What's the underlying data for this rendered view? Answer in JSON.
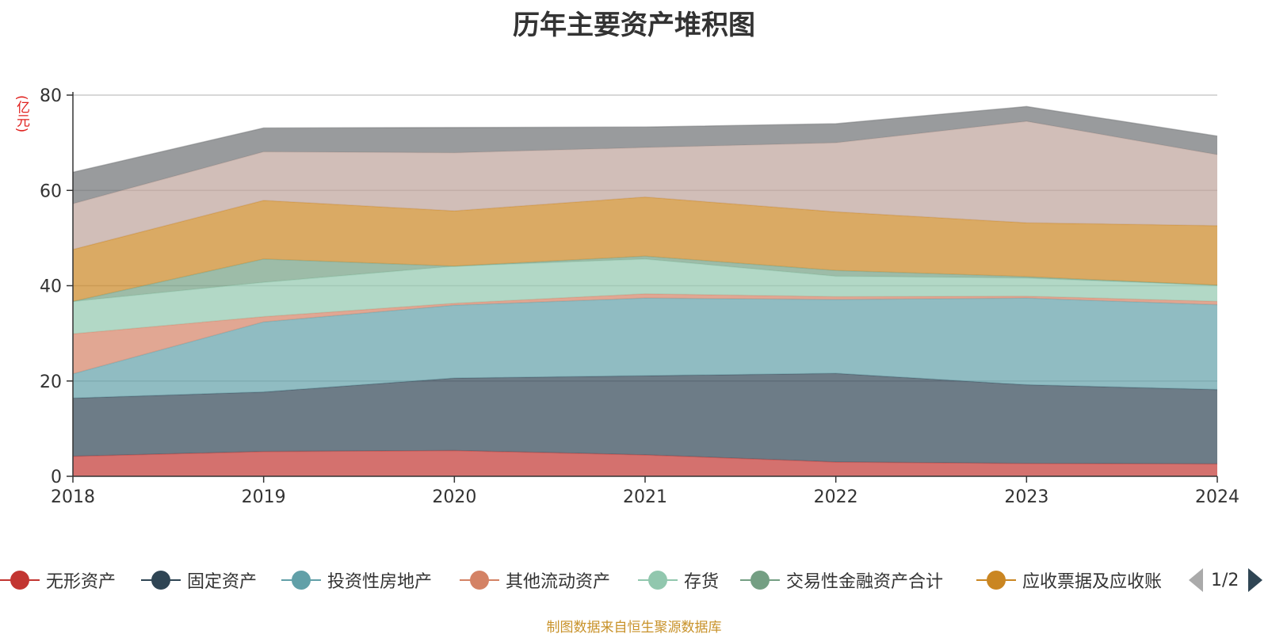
{
  "chart_data": {
    "type": "area",
    "stacked": true,
    "title": "历年主要资产堆积图",
    "ylabel": "(亿元)",
    "xlabel": "",
    "x": [
      "2018",
      "2019",
      "2020",
      "2021",
      "2022",
      "2023",
      "2024"
    ],
    "ylim": [
      0,
      80
    ],
    "yticks": [
      0,
      20,
      40,
      60,
      80
    ],
    "grid": true,
    "legend_position": "bottom",
    "series": [
      {
        "name": "无形资产",
        "color": "#c23531",
        "values": [
          4.2,
          5.2,
          5.4,
          4.5,
          3.0,
          2.7,
          2.6
        ]
      },
      {
        "name": "固定资产",
        "color": "#2f4554",
        "values": [
          12.2,
          12.5,
          15.2,
          16.6,
          18.6,
          16.5,
          15.6
        ]
      },
      {
        "name": "投资性房地产",
        "color": "#61a0a8",
        "values": [
          5.1,
          14.7,
          15.3,
          16.3,
          15.5,
          18.2,
          17.8
        ]
      },
      {
        "name": "其他流动资产",
        "color": "#d48265",
        "values": [
          8.4,
          1.1,
          0.4,
          0.9,
          0.6,
          0.4,
          0.7
        ]
      },
      {
        "name": "存货",
        "color": "#91c7ae",
        "values": [
          6.8,
          7.2,
          7.8,
          7.3,
          4.3,
          3.8,
          3.4
        ]
      },
      {
        "name": "交易性金融资产合计",
        "color": "#749f83",
        "values": [
          0.0,
          4.9,
          0.0,
          0.6,
          1.2,
          0.3,
          0.0
        ]
      },
      {
        "name": "应收票据及应收账",
        "color": "#ca8622",
        "values": [
          10.9,
          12.3,
          11.6,
          12.4,
          12.3,
          11.3,
          12.5
        ]
      },
      {
        "name": "",
        "color": "#bda29a",
        "values": [
          9.6,
          10.2,
          12.2,
          10.4,
          14.5,
          21.3,
          14.9
        ]
      },
      {
        "name": "",
        "color": "#6e7074",
        "values": [
          6.6,
          5.0,
          5.3,
          4.3,
          4.0,
          3.1,
          3.9
        ]
      }
    ]
  },
  "legend": {
    "page_indicator": "1/2"
  },
  "source_note": "制图数据来自恒生聚源数据库"
}
